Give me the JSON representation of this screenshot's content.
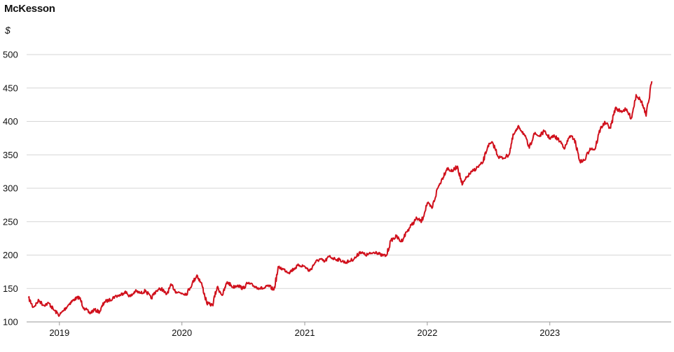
{
  "chart_data": {
    "type": "line",
    "title": "McKesson",
    "ylabel": "$",
    "xlabel": "",
    "ylim": [
      100,
      500
    ],
    "yticks": [
      100,
      150,
      200,
      250,
      300,
      350,
      400,
      450,
      500
    ],
    "xlim": [
      "2018-10-01",
      "2023-11-05"
    ],
    "xtick_labels": [
      "2019",
      "2020",
      "2021",
      "2022",
      "2023"
    ],
    "xtick_dates": [
      "2019-01-01",
      "2020-01-01",
      "2021-01-01",
      "2022-01-01",
      "2023-01-01"
    ],
    "grid": "horizontal",
    "line_color": "#d0101c",
    "series": [
      {
        "x": [
          "2018-10-01",
          "2018-10-15",
          "2018-11-01",
          "2018-11-15",
          "2018-12-01",
          "2018-12-15",
          "2019-01-01",
          "2019-01-15",
          "2019-02-01",
          "2019-02-15",
          "2019-03-01",
          "2019-03-15",
          "2019-04-01",
          "2019-04-15",
          "2019-05-01",
          "2019-05-15",
          "2019-06-01",
          "2019-06-15",
          "2019-07-01",
          "2019-07-15",
          "2019-08-01",
          "2019-08-15",
          "2019-09-01",
          "2019-09-15",
          "2019-10-01",
          "2019-10-15",
          "2019-11-01",
          "2019-11-15",
          "2019-12-01",
          "2019-12-15",
          "2020-01-01",
          "2020-01-15",
          "2020-02-01",
          "2020-02-15",
          "2020-03-01",
          "2020-03-15",
          "2020-04-01",
          "2020-04-15",
          "2020-05-01",
          "2020-05-15",
          "2020-06-01",
          "2020-06-15",
          "2020-07-01",
          "2020-07-15",
          "2020-08-01",
          "2020-08-15",
          "2020-09-01",
          "2020-09-15",
          "2020-10-01",
          "2020-10-15",
          "2020-11-01",
          "2020-11-15",
          "2020-12-01",
          "2020-12-15",
          "2021-01-01",
          "2021-01-15",
          "2021-02-01",
          "2021-02-15",
          "2021-03-01",
          "2021-03-15",
          "2021-04-01",
          "2021-04-15",
          "2021-05-01",
          "2021-05-15",
          "2021-06-01",
          "2021-06-15",
          "2021-07-01",
          "2021-07-15",
          "2021-08-01",
          "2021-08-15",
          "2021-09-01",
          "2021-09-15",
          "2021-10-01",
          "2021-10-15",
          "2021-11-01",
          "2021-11-15",
          "2021-12-01",
          "2021-12-15",
          "2022-01-01",
          "2022-01-15",
          "2022-02-01",
          "2022-02-15",
          "2022-03-01",
          "2022-03-15",
          "2022-04-01",
          "2022-04-15",
          "2022-05-01",
          "2022-05-15",
          "2022-06-01",
          "2022-06-15",
          "2022-07-01",
          "2022-07-15",
          "2022-08-01",
          "2022-08-15",
          "2022-09-01",
          "2022-09-15",
          "2022-10-01",
          "2022-10-15",
          "2022-11-01",
          "2022-11-15",
          "2022-12-01",
          "2022-12-15",
          "2023-01-01",
          "2023-01-15",
          "2023-02-01",
          "2023-02-15",
          "2023-03-01",
          "2023-03-15",
          "2023-04-01",
          "2023-04-15",
          "2023-05-01",
          "2023-05-15",
          "2023-06-01",
          "2023-06-15",
          "2023-07-01",
          "2023-07-15",
          "2023-08-01",
          "2023-08-15",
          "2023-09-01",
          "2023-09-15",
          "2023-10-01",
          "2023-10-15",
          "2023-11-01"
        ],
        "y": [
          136,
          122,
          132,
          125,
          128,
          118,
          110,
          118,
          128,
          134,
          137,
          121,
          113,
          118,
          115,
          130,
          133,
          138,
          140,
          145,
          138,
          146,
          143,
          147,
          135,
          146,
          150,
          141,
          155,
          145,
          143,
          142,
          158,
          170,
          155,
          128,
          125,
          152,
          140,
          160,
          152,
          155,
          150,
          158,
          154,
          151,
          150,
          154,
          148,
          182,
          178,
          174,
          180,
          185,
          183,
          176,
          189,
          194,
          190,
          198,
          194,
          193,
          189,
          191,
          196,
          205,
          200,
          202,
          205,
          200,
          199,
          222,
          228,
          220,
          235,
          245,
          255,
          250,
          278,
          270,
          300,
          315,
          330,
          325,
          333,
          305,
          318,
          325,
          332,
          338,
          364,
          368,
          347,
          345,
          350,
          380,
          392,
          382,
          360,
          382,
          378,
          385,
          375,
          378,
          370,
          360,
          378,
          374,
          340,
          342,
          360,
          358,
          390,
          398,
          390,
          420,
          415,
          418,
          405,
          440,
          430,
          408,
          460
        ]
      }
    ]
  }
}
